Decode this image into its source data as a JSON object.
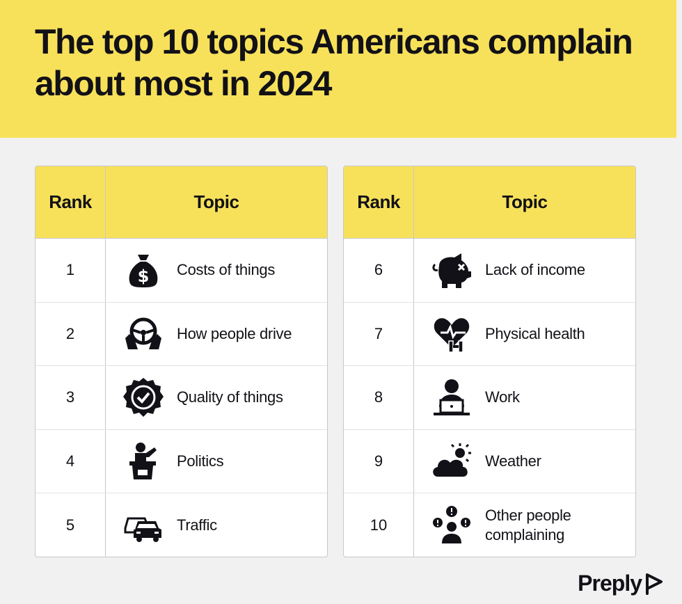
{
  "title": "The top 10 topics Americans complain about most in 2024",
  "tables": [
    {
      "header": {
        "rank": "Rank",
        "topic": "Topic"
      },
      "rows": [
        {
          "rank": "1",
          "topic": "Costs of things",
          "icon": "money-bag-icon"
        },
        {
          "rank": "2",
          "topic": "How people drive",
          "icon": "steering-wheel-icon"
        },
        {
          "rank": "3",
          "topic": "Quality of things",
          "icon": "quality-badge-icon"
        },
        {
          "rank": "4",
          "topic": "Politics",
          "icon": "podium-speaker-icon"
        },
        {
          "rank": "5",
          "topic": "Traffic",
          "icon": "cars-icon"
        }
      ]
    },
    {
      "header": {
        "rank": "Rank",
        "topic": "Topic"
      },
      "rows": [
        {
          "rank": "6",
          "topic": "Lack of income",
          "icon": "piggy-bank-icon"
        },
        {
          "rank": "7",
          "topic": "Physical health",
          "icon": "heart-dumbbell-icon"
        },
        {
          "rank": "8",
          "topic": "Work",
          "icon": "person-laptop-icon"
        },
        {
          "rank": "9",
          "topic": "Weather",
          "icon": "cloud-sun-icon"
        },
        {
          "rank": "10",
          "topic": "Other people complaining",
          "icon": "people-complaining-icon"
        }
      ]
    }
  ],
  "brand": "Preply",
  "colors": {
    "accent_yellow": "#f7e15a",
    "text": "#121117",
    "background": "#f2f1f1"
  }
}
